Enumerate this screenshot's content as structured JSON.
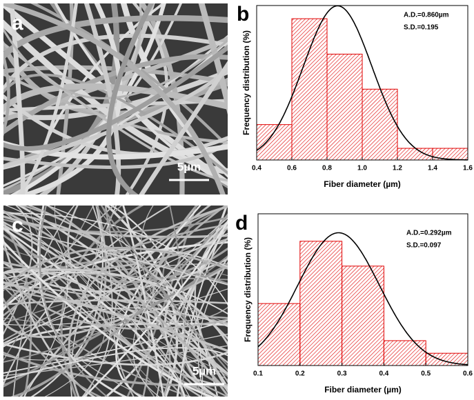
{
  "images": [
    {
      "panel_label": "a",
      "scale_bar": "5µm"
    },
    {
      "panel_label": "c",
      "scale_bar": "5µm"
    }
  ],
  "chart_data": [
    {
      "type": "histogram",
      "panel_label": "b",
      "color": "#e00000",
      "bins": [
        0.4,
        0.6,
        0.8,
        1.0,
        1.2,
        1.4,
        1.6
      ],
      "values": [
        9.4,
        37.5,
        28.1,
        18.8,
        3.1,
        3.1
      ],
      "xlim": [
        0.4,
        1.6
      ],
      "ylim": [
        0,
        41
      ],
      "xticks": [
        0.4,
        0.6,
        0.8,
        {
          "value": 1,
          "label": "1.0"
        },
        1.2,
        1.4,
        1.6
      ],
      "xlabel": "Fiber diameter (µm)",
      "ylabel": "Frequency distribution (%)",
      "fit": {
        "mean": 0.86,
        "sd": 0.195
      },
      "annotations": [
        "A.D.=0.860µm",
        "S.D.=0.195"
      ]
    },
    {
      "type": "histogram",
      "panel_label": "d",
      "color": "#e00000",
      "bins": [
        0.1,
        0.2,
        0.3,
        0.4,
        0.5,
        0.6
      ],
      "values": [
        19.2,
        38.5,
        30.8,
        7.7,
        3.8
      ],
      "xlim": [
        0.1,
        0.6
      ],
      "ylim": [
        0,
        47
      ],
      "xticks": [
        0.1,
        0.2,
        0.3,
        0.4,
        0.5,
        0.6
      ],
      "xlabel": "Fiber diameter (µm)",
      "ylabel": "Frequency distribution (%)",
      "fit": {
        "mean": 0.292,
        "sd": 0.097
      },
      "annotations": [
        "A.D.=0.292µm",
        "S.D.=0.097"
      ]
    }
  ]
}
